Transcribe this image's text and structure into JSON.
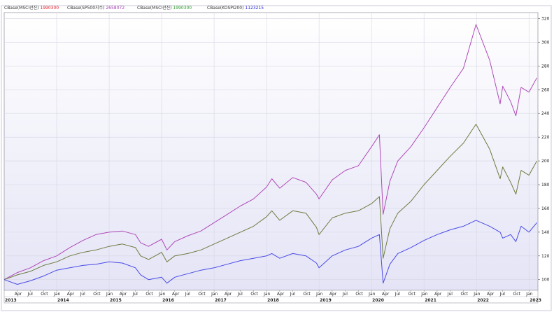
{
  "legend": [
    {
      "label": "CBase(MSCI선진)",
      "value": "1990300",
      "color": "#e8202a"
    },
    {
      "label": "CBase(SP500지수)",
      "value": "2658072",
      "color": "#a640b4"
    },
    {
      "label": "CBase(MSCI선진)",
      "value": "1990300",
      "color": "#2a9a2a"
    },
    {
      "label": "CBase(KOSPI200)",
      "value": "1123215",
      "color": "#2a2ad8"
    }
  ],
  "chart_data": {
    "type": "line",
    "xlim": [
      2013.0,
      2023.17
    ],
    "ylim": [
      91,
      325
    ],
    "y_ticks": [
      100,
      120,
      140,
      160,
      180,
      200,
      220,
      240,
      260,
      280,
      300,
      320
    ],
    "month_labels": [
      "Apr",
      "Jul",
      "Oct",
      "Jan"
    ],
    "years": [
      "2013",
      "2014",
      "2015",
      "2016",
      "2017",
      "2018",
      "2019",
      "2020",
      "2021",
      "2022",
      "2023"
    ],
    "grid": true,
    "series": [
      {
        "color": "#b04ab8",
        "x": [
          2013.0,
          2013.25,
          2013.5,
          2013.75,
          2014.0,
          2014.25,
          2014.5,
          2014.75,
          2015.0,
          2015.25,
          2015.5,
          2015.6,
          2015.75,
          2016.0,
          2016.1,
          2016.25,
          2016.5,
          2016.75,
          2017.0,
          2017.25,
          2017.5,
          2017.75,
          2018.0,
          2018.1,
          2018.25,
          2018.5,
          2018.75,
          2018.95,
          2019.0,
          2019.25,
          2019.5,
          2019.75,
          2020.0,
          2020.15,
          2020.22,
          2020.35,
          2020.5,
          2020.75,
          2021.0,
          2021.25,
          2021.5,
          2021.75,
          2021.99,
          2022.25,
          2022.45,
          2022.5,
          2022.65,
          2022.75,
          2022.85,
          2023.0,
          2023.15
        ],
        "values": [
          100,
          106,
          110,
          116,
          120,
          127,
          133,
          138,
          140,
          141,
          138,
          131,
          128,
          134,
          125,
          132,
          137,
          141,
          148,
          155,
          162,
          168,
          178,
          185,
          177,
          186,
          182,
          172,
          168,
          184,
          192,
          196,
          212,
          222,
          155,
          183,
          200,
          212,
          228,
          245,
          262,
          278,
          315,
          285,
          248,
          263,
          250,
          238,
          262,
          258,
          270
        ]
      },
      {
        "color": "#6e7a3e",
        "x": [
          2013.0,
          2013.25,
          2013.5,
          2013.75,
          2014.0,
          2014.25,
          2014.5,
          2014.75,
          2015.0,
          2015.25,
          2015.5,
          2015.6,
          2015.75,
          2016.0,
          2016.1,
          2016.25,
          2016.5,
          2016.75,
          2017.0,
          2017.25,
          2017.5,
          2017.75,
          2018.0,
          2018.1,
          2018.25,
          2018.5,
          2018.75,
          2018.95,
          2019.0,
          2019.25,
          2019.5,
          2019.75,
          2020.0,
          2020.15,
          2020.22,
          2020.35,
          2020.5,
          2020.75,
          2021.0,
          2021.25,
          2021.5,
          2021.75,
          2021.99,
          2022.25,
          2022.45,
          2022.5,
          2022.65,
          2022.75,
          2022.85,
          2023.0,
          2023.15
        ],
        "values": [
          100,
          104,
          107,
          112,
          115,
          120,
          123,
          125,
          128,
          130,
          127,
          120,
          117,
          123,
          115,
          120,
          122,
          125,
          130,
          135,
          140,
          145,
          153,
          158,
          150,
          158,
          156,
          144,
          138,
          152,
          156,
          158,
          164,
          170,
          118,
          143,
          156,
          166,
          180,
          192,
          204,
          215,
          231,
          210,
          185,
          195,
          182,
          172,
          192,
          188,
          200
        ]
      },
      {
        "color": "#4a4ae8",
        "x": [
          2013.0,
          2013.25,
          2013.5,
          2013.75,
          2014.0,
          2014.25,
          2014.5,
          2014.75,
          2015.0,
          2015.25,
          2015.5,
          2015.6,
          2015.75,
          2016.0,
          2016.1,
          2016.25,
          2016.5,
          2016.75,
          2017.0,
          2017.25,
          2017.5,
          2017.75,
          2018.0,
          2018.1,
          2018.25,
          2018.5,
          2018.75,
          2018.95,
          2019.0,
          2019.25,
          2019.5,
          2019.75,
          2020.0,
          2020.15,
          2020.22,
          2020.35,
          2020.5,
          2020.75,
          2021.0,
          2021.25,
          2021.5,
          2021.75,
          2021.99,
          2022.25,
          2022.45,
          2022.5,
          2022.65,
          2022.75,
          2022.85,
          2023.0,
          2023.15
        ],
        "values": [
          100,
          96,
          99,
          103,
          108,
          110,
          112,
          113,
          115,
          114,
          110,
          104,
          100,
          102,
          97,
          102,
          105,
          108,
          110,
          113,
          116,
          118,
          120,
          122,
          118,
          122,
          120,
          114,
          110,
          120,
          125,
          128,
          135,
          138,
          97,
          113,
          122,
          127,
          133,
          138,
          142,
          145,
          150,
          145,
          140,
          135,
          138,
          132,
          145,
          140,
          148
        ]
      }
    ]
  }
}
